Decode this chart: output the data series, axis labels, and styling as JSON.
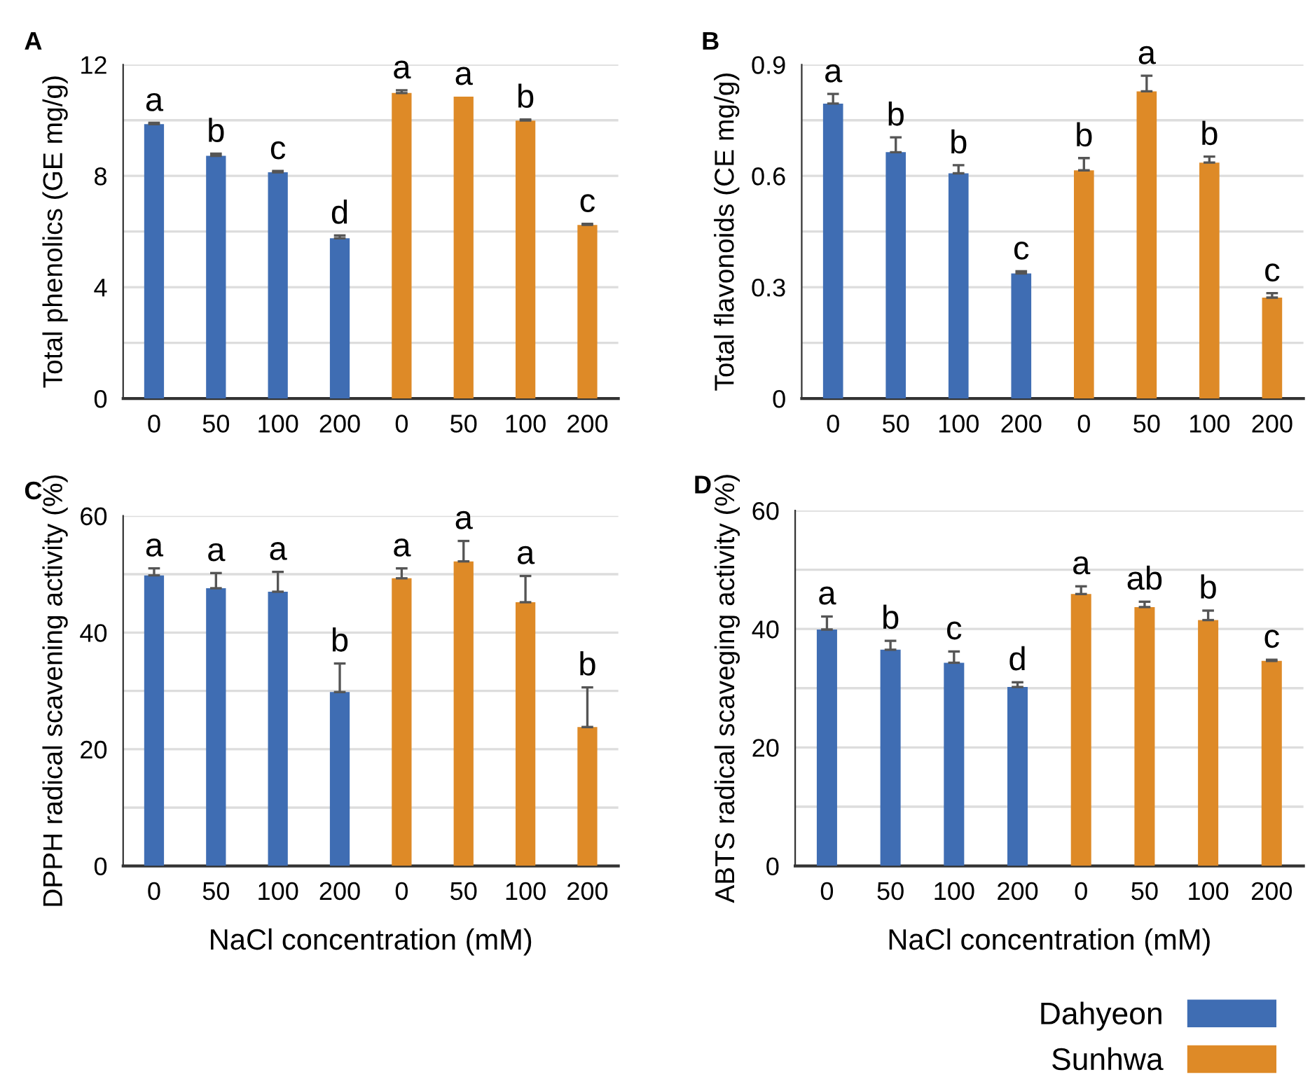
{
  "chart_data": [
    {
      "type": "bar",
      "title": "A",
      "ylabel": "Total phenolics (GE mg/g)",
      "categories": [
        "0",
        "50",
        "100",
        "200",
        "0",
        "50",
        "100",
        "200"
      ],
      "ylim": [
        0,
        12
      ],
      "yticks": [
        0,
        {
          "value": 2,
          "label": null
        },
        4,
        {
          "value": 6,
          "label": null
        },
        8,
        {
          "value": 10,
          "label": null
        },
        12
      ],
      "grid": "y",
      "legend": false,
      "series": [
        {
          "color": "#3f6db3",
          "values": [
            9.86,
            8.72,
            8.13,
            5.76,
            null,
            null,
            null,
            null
          ],
          "errors": [
            [
              9.86,
              9.91
            ],
            [
              8.72,
              8.8
            ],
            [
              8.13,
              8.18
            ],
            [
              5.76,
              5.86
            ],
            null,
            null,
            null,
            null
          ],
          "value_labels": [
            "a",
            "b",
            "c",
            "d",
            null,
            null,
            null,
            null
          ]
        },
        {
          "color": "#de8a27",
          "values": [
            null,
            null,
            null,
            null,
            10.98,
            10.85,
            9.99,
            6.24
          ],
          "errors": [
            null,
            null,
            null,
            null,
            [
              10.98,
              11.08
            ],
            null,
            [
              9.99,
              10.03
            ],
            [
              6.24,
              6.28
            ]
          ],
          "value_labels": [
            null,
            null,
            null,
            null,
            "a",
            "a",
            "b",
            "c"
          ]
        }
      ]
    },
    {
      "type": "bar",
      "title": "B",
      "ylabel": "Total flavonoids (CE mg/g)",
      "categories": [
        "0",
        "50",
        "100",
        "200",
        "0",
        "50",
        "100",
        "200"
      ],
      "ylim": [
        0,
        0.9
      ],
      "yticks": [
        0,
        {
          "value": 0.15,
          "label": null
        },
        0.3,
        {
          "value": 0.45,
          "label": null
        },
        0.6,
        {
          "value": 0.75,
          "label": null
        },
        0.9
      ],
      "grid": "y",
      "legend": false,
      "series": [
        {
          "color": "#3f6db3",
          "values": [
            0.795,
            0.664,
            0.607,
            0.337,
            null,
            null,
            null,
            null
          ],
          "errors": [
            [
              0.795,
              0.821
            ],
            [
              0.664,
              0.704
            ],
            [
              0.607,
              0.629
            ],
            [
              0.337,
              0.343
            ],
            null,
            null,
            null,
            null
          ],
          "value_labels": [
            "a",
            "b",
            "b",
            "c",
            null,
            null,
            null,
            null
          ]
        },
        {
          "color": "#de8a27",
          "values": [
            null,
            null,
            null,
            null,
            0.615,
            0.828,
            0.636,
            0.272
          ],
          "errors": [
            null,
            null,
            null,
            null,
            [
              0.615,
              0.648
            ],
            [
              0.828,
              0.87
            ],
            [
              0.636,
              0.652
            ],
            [
              0.272,
              0.284
            ]
          ],
          "value_labels": [
            null,
            null,
            null,
            null,
            "b",
            "a",
            "b",
            "c"
          ]
        }
      ]
    },
    {
      "type": "bar",
      "title": "C",
      "ylabel": "DPPH radical scavening activity (%)",
      "xlabel": "NaCl concentration (mM)",
      "categories": [
        "0",
        "50",
        "100",
        "200",
        "0",
        "50",
        "100",
        "200"
      ],
      "ylim": [
        0,
        60
      ],
      "yticks": [
        0,
        {
          "value": 10,
          "label": null
        },
        20,
        {
          "value": 30,
          "label": null
        },
        40,
        {
          "value": 50,
          "label": null
        },
        60
      ],
      "grid": "y",
      "legend": false,
      "series": [
        {
          "color": "#3f6db3",
          "values": [
            49.8,
            47.6,
            47.0,
            29.8,
            null,
            null,
            null,
            null
          ],
          "errors": [
            [
              49.8,
              51
            ],
            [
              47.6,
              50.2
            ],
            [
              47.0,
              50.4
            ],
            [
              29.8,
              34.7
            ],
            null,
            null,
            null,
            null
          ],
          "value_labels": [
            "a",
            "a",
            "a",
            "b",
            null,
            null,
            null,
            null
          ]
        },
        {
          "color": "#de8a27",
          "values": [
            null,
            null,
            null,
            null,
            49.3,
            52.2,
            45.2,
            23.8
          ],
          "errors": [
            null,
            null,
            null,
            null,
            [
              49.3,
              51
            ],
            [
              52.2,
              55.7
            ],
            [
              45.2,
              49.7
            ],
            [
              23.8,
              30.6
            ]
          ],
          "value_labels": [
            null,
            null,
            null,
            null,
            "a",
            "a",
            "a",
            "b"
          ]
        }
      ]
    },
    {
      "type": "bar",
      "title": "D",
      "ylabel": "ABTS radical scaveging activity (%)",
      "xlabel": "NaCl concentration (mM)",
      "categories": [
        "0",
        "50",
        "100",
        "200",
        "0",
        "50",
        "100",
        "200"
      ],
      "ylim": [
        0,
        60
      ],
      "yticks": [
        0,
        {
          "value": 10,
          "label": null
        },
        20,
        {
          "value": 30,
          "label": null
        },
        40,
        {
          "value": 50,
          "label": null
        },
        60
      ],
      "grid": "y",
      "legend": "bottom right",
      "series": [
        {
          "name": "Dahyeon",
          "color": "#3f6db3",
          "values": [
            39.9,
            36.5,
            34.3,
            30.2,
            null,
            null,
            null,
            null
          ],
          "errors": [
            [
              39.9,
              42.1
            ],
            [
              36.5,
              38
            ],
            [
              34.3,
              36.2
            ],
            [
              30.2,
              31
            ],
            null,
            null,
            null,
            null
          ],
          "value_labels": [
            "a",
            "b",
            "c",
            "d",
            null,
            null,
            null,
            null
          ]
        },
        {
          "name": "Sunhwa",
          "color": "#de8a27",
          "values": [
            null,
            null,
            null,
            null,
            45.9,
            43.7,
            41.5,
            34.6
          ],
          "errors": [
            null,
            null,
            null,
            null,
            [
              45.9,
              47.2
            ],
            [
              43.7,
              44.6
            ],
            [
              41.5,
              43.1
            ],
            [
              34.6,
              34.8
            ]
          ],
          "value_labels": [
            null,
            null,
            null,
            null,
            "a",
            "ab",
            "b",
            "c"
          ]
        }
      ]
    }
  ]
}
